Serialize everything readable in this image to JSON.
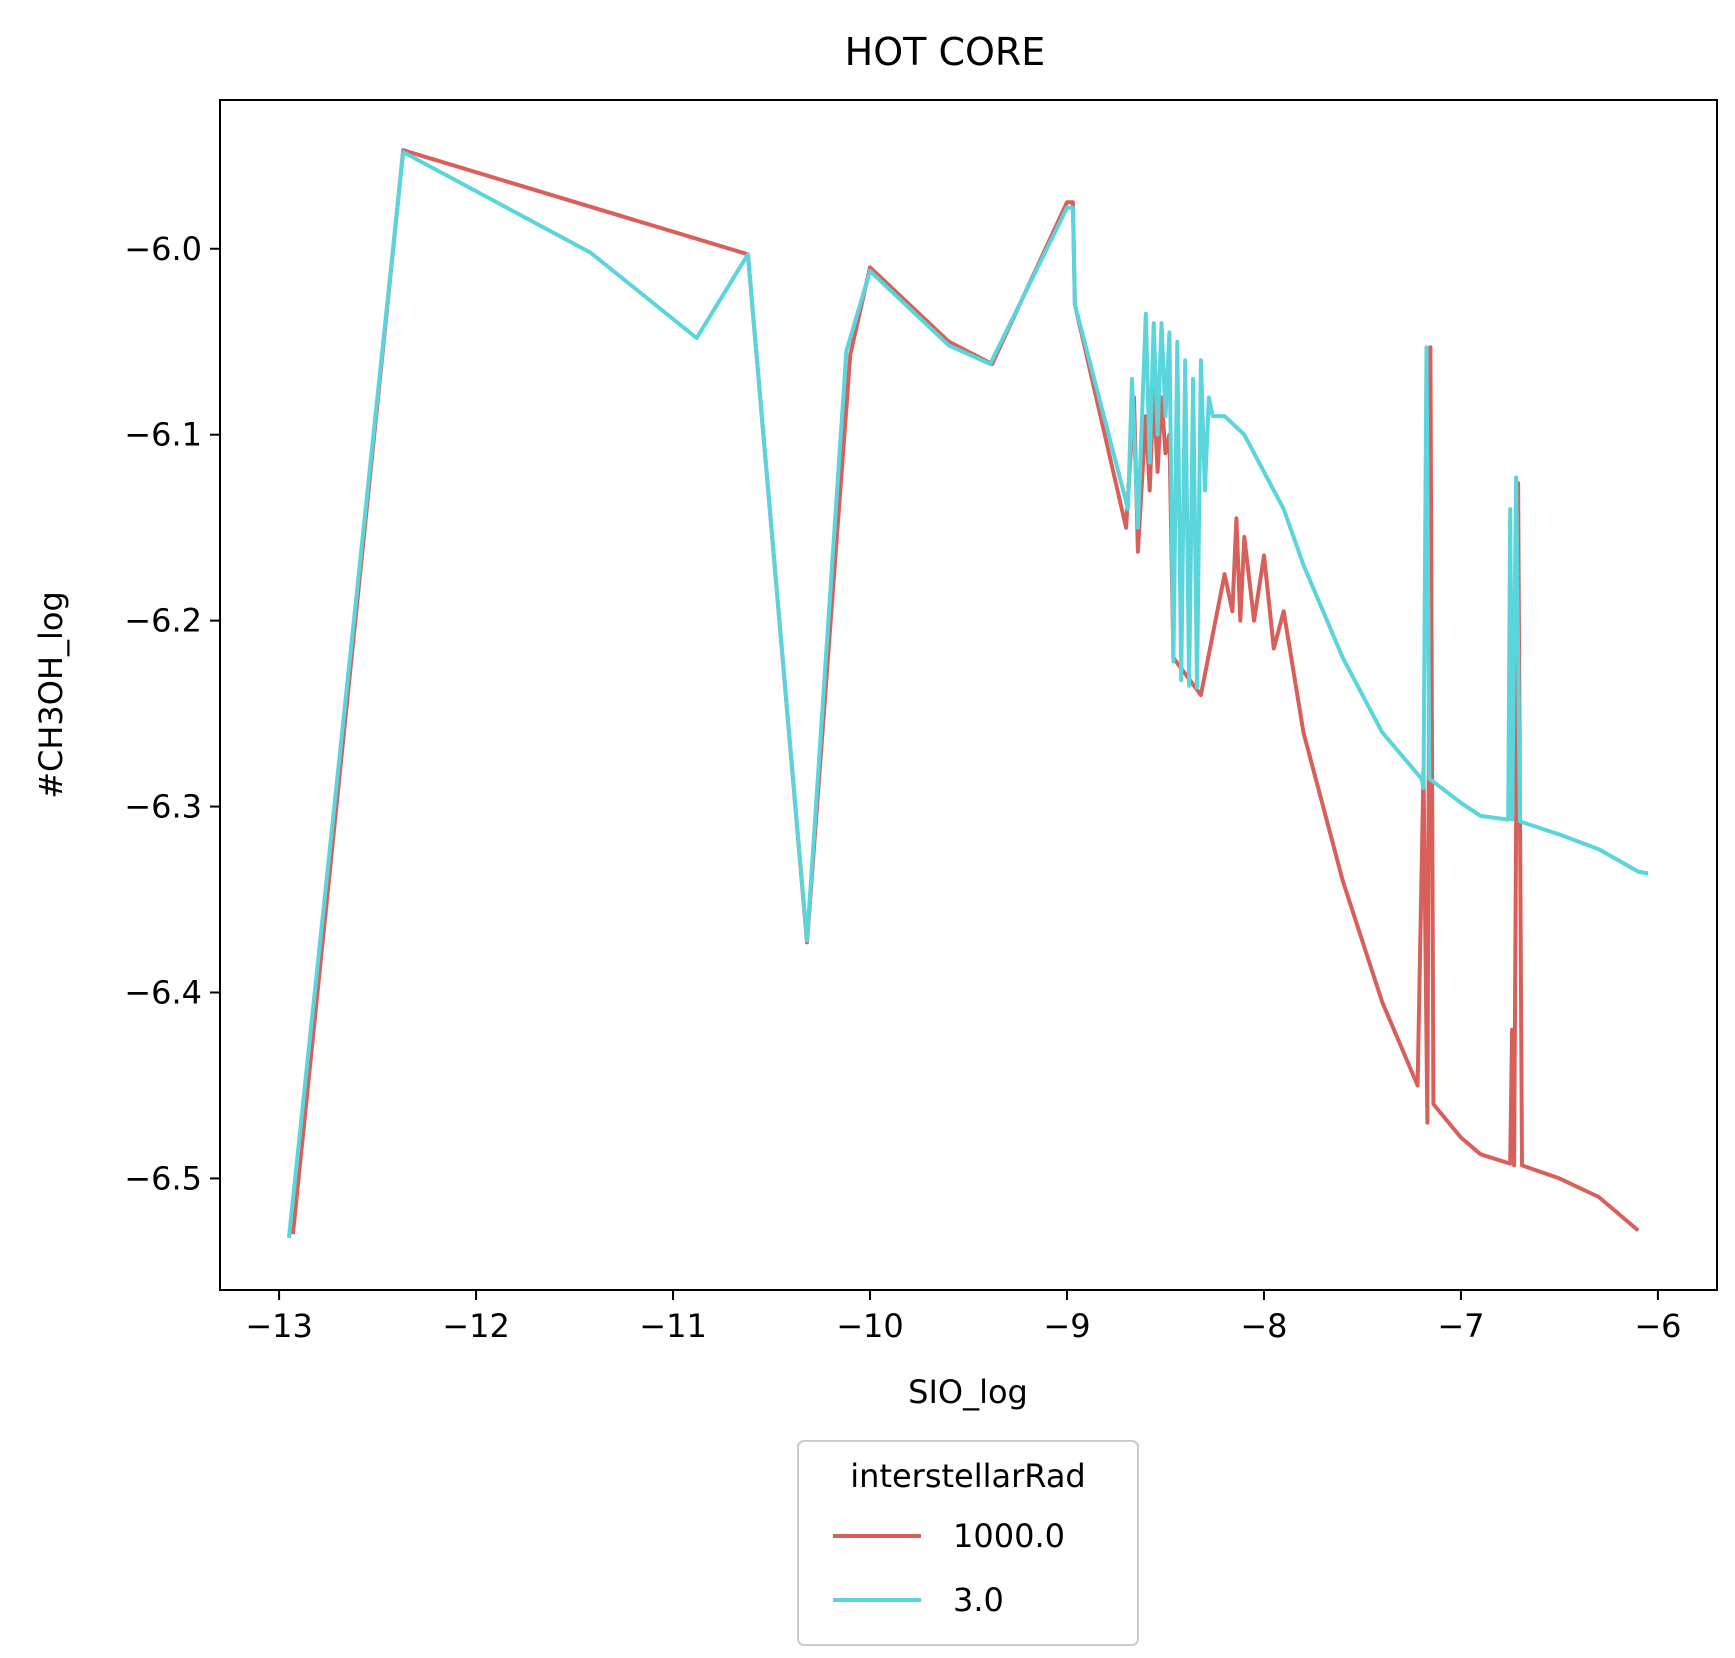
{
  "chart_data": {
    "type": "line",
    "title": "HOT CORE",
    "xlabel": "SIO_log",
    "ylabel": "#CH3OH_log",
    "xlim": [
      -13.3,
      -5.7
    ],
    "ylim": [
      -6.56,
      -5.92
    ],
    "xticks": [
      -13,
      -12,
      -11,
      -10,
      -9,
      -8,
      -7,
      -6
    ],
    "yticks": [
      -6.5,
      -6.4,
      -6.3,
      -6.2,
      -6.1,
      -6.0
    ],
    "xtick_labels": [
      "−13",
      "−12",
      "−11",
      "−10",
      "−9",
      "−8",
      "−7",
      "−6"
    ],
    "ytick_labels": [
      "−6.5",
      "−6.4",
      "−6.3",
      "−6.2",
      "−6.1",
      "−6.0"
    ],
    "grid": false,
    "legend": {
      "title": "interstellarRad",
      "placement": "bottom-center-outside"
    },
    "series": [
      {
        "name": "1000.0",
        "color": "#d9605a",
        "points": [
          [
            -12.93,
            -6.53
          ],
          [
            -12.37,
            -5.947
          ],
          [
            -10.62,
            -6.003
          ],
          [
            -10.32,
            -6.373
          ],
          [
            -10.1,
            -6.057
          ],
          [
            -10.0,
            -6.01
          ],
          [
            -9.6,
            -6.05
          ],
          [
            -9.38,
            -6.062
          ],
          [
            -9.0,
            -5.975
          ],
          [
            -8.97,
            -5.975
          ],
          [
            -8.96,
            -6.03
          ],
          [
            -8.7,
            -6.15
          ],
          [
            -8.66,
            -6.08
          ],
          [
            -8.64,
            -6.163
          ],
          [
            -8.6,
            -6.09
          ],
          [
            -8.58,
            -6.13
          ],
          [
            -8.56,
            -6.075
          ],
          [
            -8.54,
            -6.12
          ],
          [
            -8.52,
            -6.08
          ],
          [
            -8.5,
            -6.11
          ],
          [
            -8.48,
            -6.1
          ],
          [
            -8.46,
            -6.22
          ],
          [
            -8.32,
            -6.24
          ],
          [
            -8.2,
            -6.175
          ],
          [
            -8.16,
            -6.195
          ],
          [
            -8.14,
            -6.145
          ],
          [
            -8.12,
            -6.2
          ],
          [
            -8.1,
            -6.155
          ],
          [
            -8.05,
            -6.2
          ],
          [
            -8.0,
            -6.165
          ],
          [
            -7.95,
            -6.215
          ],
          [
            -7.9,
            -6.195
          ],
          [
            -7.8,
            -6.26
          ],
          [
            -7.6,
            -6.34
          ],
          [
            -7.4,
            -6.405
          ],
          [
            -7.22,
            -6.45
          ],
          [
            -7.19,
            -6.28
          ],
          [
            -7.17,
            -6.47
          ],
          [
            -7.155,
            -6.053
          ],
          [
            -7.14,
            -6.46
          ],
          [
            -7.0,
            -6.478
          ],
          [
            -6.9,
            -6.487
          ],
          [
            -6.75,
            -6.492
          ],
          [
            -6.74,
            -6.42
          ],
          [
            -6.73,
            -6.493
          ],
          [
            -6.71,
            -6.126
          ],
          [
            -6.69,
            -6.493
          ],
          [
            -6.5,
            -6.5
          ],
          [
            -6.3,
            -6.51
          ],
          [
            -6.1,
            -6.528
          ]
        ]
      },
      {
        "name": "3.0",
        "color": "#5ad5db",
        "points": [
          [
            -12.95,
            -6.532
          ],
          [
            -12.37,
            -5.948
          ],
          [
            -11.42,
            -6.002
          ],
          [
            -10.88,
            -6.048
          ],
          [
            -10.62,
            -6.003
          ],
          [
            -10.32,
            -6.372
          ],
          [
            -10.12,
            -6.055
          ],
          [
            -10.0,
            -6.012
          ],
          [
            -9.6,
            -6.052
          ],
          [
            -9.39,
            -6.062
          ],
          [
            -9.0,
            -5.978
          ],
          [
            -8.97,
            -5.978
          ],
          [
            -8.96,
            -6.03
          ],
          [
            -8.69,
            -6.14
          ],
          [
            -8.67,
            -6.07
          ],
          [
            -8.64,
            -6.15
          ],
          [
            -8.6,
            -6.035
          ],
          [
            -8.58,
            -6.115
          ],
          [
            -8.56,
            -6.04
          ],
          [
            -8.54,
            -6.1
          ],
          [
            -8.52,
            -6.04
          ],
          [
            -8.5,
            -6.09
          ],
          [
            -8.48,
            -6.045
          ],
          [
            -8.46,
            -6.222
          ],
          [
            -8.44,
            -6.05
          ],
          [
            -8.42,
            -6.232
          ],
          [
            -8.4,
            -6.06
          ],
          [
            -8.38,
            -6.235
          ],
          [
            -8.36,
            -6.07
          ],
          [
            -8.34,
            -6.236
          ],
          [
            -8.32,
            -6.06
          ],
          [
            -8.3,
            -6.13
          ],
          [
            -8.28,
            -6.08
          ],
          [
            -8.26,
            -6.09
          ],
          [
            -8.2,
            -6.09
          ],
          [
            -8.1,
            -6.1
          ],
          [
            -8.0,
            -6.12
          ],
          [
            -7.9,
            -6.14
          ],
          [
            -7.8,
            -6.17
          ],
          [
            -7.6,
            -6.22
          ],
          [
            -7.4,
            -6.26
          ],
          [
            -7.2,
            -6.285
          ],
          [
            -7.19,
            -6.29
          ],
          [
            -7.175,
            -6.053
          ],
          [
            -7.16,
            -6.285
          ],
          [
            -7.0,
            -6.298
          ],
          [
            -6.9,
            -6.305
          ],
          [
            -6.76,
            -6.307
          ],
          [
            -6.75,
            -6.14
          ],
          [
            -6.74,
            -6.307
          ],
          [
            -6.72,
            -6.123
          ],
          [
            -6.7,
            -6.308
          ],
          [
            -6.5,
            -6.315
          ],
          [
            -6.3,
            -6.323
          ],
          [
            -6.1,
            -6.335
          ],
          [
            -6.05,
            -6.336
          ]
        ]
      }
    ]
  }
}
